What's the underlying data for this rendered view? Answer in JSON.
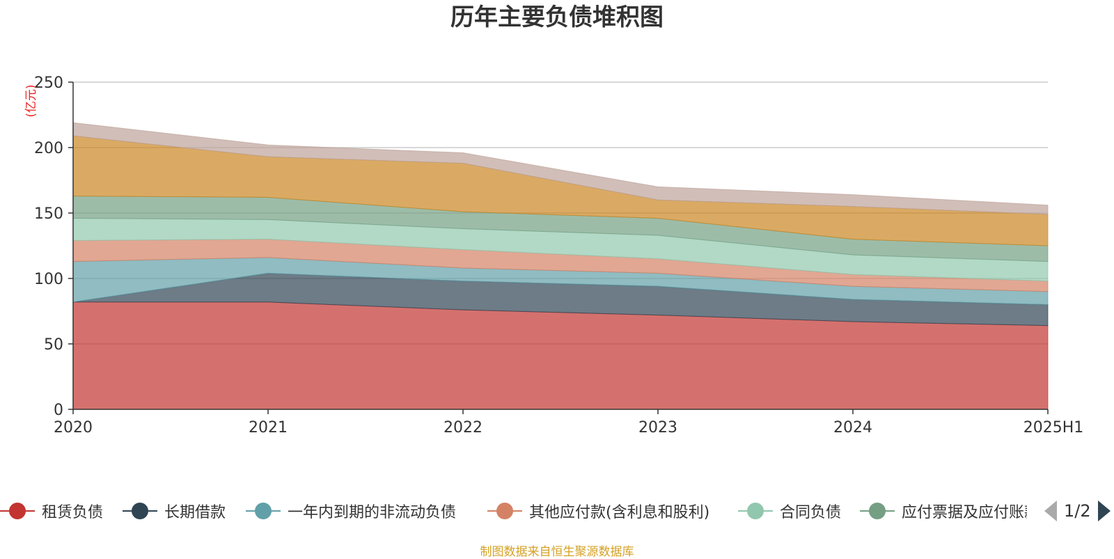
{
  "title": "历年主要负债堆积图",
  "source_note": "制图数据来自恒生聚源数据库",
  "pager": {
    "page": "1/2"
  },
  "colors": {
    "axis": "#333333",
    "grid": "#cccccc",
    "unit_label": "#e8231f"
  },
  "chart_data": {
    "type": "area",
    "stacked": true,
    "title": "历年主要负债堆积图",
    "ylabel": "(亿元)",
    "xlabel": "",
    "x": [
      "2020",
      "2021",
      "2022",
      "2023",
      "2024",
      "2025H1"
    ],
    "ylim": [
      0,
      250
    ],
    "yticks": [
      0,
      50,
      100,
      150,
      200,
      250
    ],
    "grid": true,
    "legend_position": "bottom",
    "series": [
      {
        "name": "租赁负债",
        "color": "#c23531",
        "values": [
          82,
          82,
          76,
          72,
          67,
          64
        ]
      },
      {
        "name": "长期借款",
        "color": "#2f4554",
        "values": [
          0,
          22,
          22,
          22,
          17,
          16
        ]
      },
      {
        "name": "一年内到期的非流动负债",
        "color": "#61a0a8",
        "values": [
          31,
          12,
          10,
          10,
          10,
          10
        ]
      },
      {
        "name": "其他应付款(含利息和股利)",
        "color": "#d48265",
        "values": [
          16,
          14,
          14,
          11,
          9,
          8
        ]
      },
      {
        "name": "合同负债",
        "color": "#91c7ae",
        "values": [
          17,
          15,
          16,
          18,
          15,
          15
        ]
      },
      {
        "name": "应付票据及应付账款",
        "color": "#749f83",
        "values": [
          17,
          17,
          13,
          13,
          12,
          12
        ]
      },
      {
        "name": "",
        "color": "#ca8622",
        "values": [
          46,
          31,
          37,
          14,
          25,
          24
        ]
      },
      {
        "name": "",
        "color": "#bda29a",
        "values": [
          10,
          9,
          8,
          10,
          9,
          7
        ]
      }
    ]
  }
}
